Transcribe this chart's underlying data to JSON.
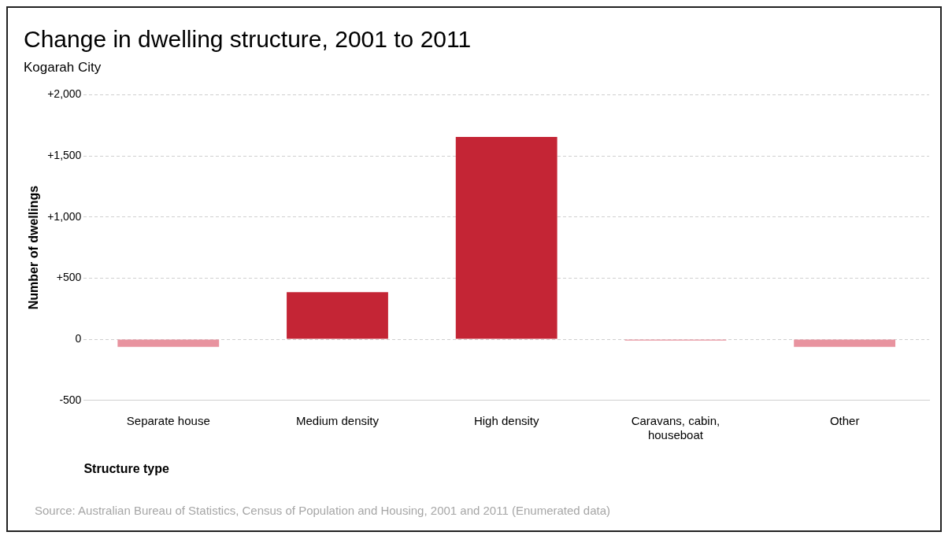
{
  "chart_data": {
    "type": "bar",
    "title": "Change in dwelling structure, 2001 to 2011",
    "subtitle": "Kogarah City",
    "xlabel": "Structure type",
    "ylabel": "Number of dwellings",
    "categories": [
      [
        "Separate house"
      ],
      [
        "Medium density"
      ],
      [
        "High density"
      ],
      [
        "Caravans, cabin,",
        "houseboat"
      ],
      [
        "Other"
      ]
    ],
    "values": [
      -62,
      385,
      1655,
      -10,
      -62
    ],
    "colors": [
      "#e8939f",
      "#c42535",
      "#c42535",
      "#e8939f",
      "#e8939f"
    ],
    "ylim": [
      -500,
      2000
    ],
    "yticks": [
      {
        "value": -500,
        "label": "-500"
      },
      {
        "value": 0,
        "label": "0"
      },
      {
        "value": 500,
        "label": "+500"
      },
      {
        "value": 1000,
        "label": "+1,000"
      },
      {
        "value": 1500,
        "label": "+1,500"
      },
      {
        "value": 2000,
        "label": "+2,000"
      }
    ],
    "grid": "y",
    "line_style": "dashed",
    "legend": false,
    "annotations": [
      "Source: Australian Bureau of Statistics, Census of Population and Housing, 2001 and 2011 (Enumerated data)"
    ]
  }
}
